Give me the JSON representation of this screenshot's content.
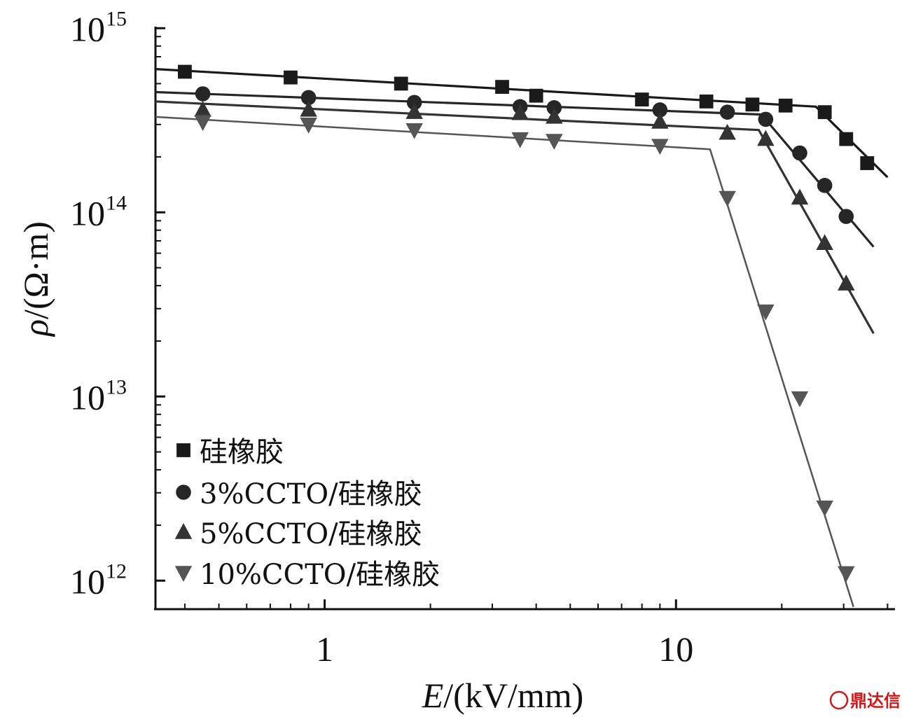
{
  "chart_data": {
    "type": "line",
    "x_scale": "log",
    "y_scale": "log",
    "xlim": [
      0.33,
      42
    ],
    "ylim": [
      700000000000.0,
      1020000000000000.0
    ],
    "x_ticks": [
      {
        "value": 1,
        "label": "1"
      },
      {
        "value": 10,
        "label": "10"
      }
    ],
    "y_ticks": [
      {
        "value": 1000000000000.0,
        "base": "10",
        "exp": "12"
      },
      {
        "value": 10000000000000.0,
        "base": "10",
        "exp": "13"
      },
      {
        "value": 100000000000000.0,
        "base": "10",
        "exp": "14"
      },
      {
        "value": 1000000000000000.0,
        "base": "10",
        "exp": "15"
      }
    ],
    "xlabel": {
      "var": "E",
      "rest": "/(kV/mm)"
    },
    "ylabel": {
      "var": "ρ",
      "rest": "/(Ω·m)"
    },
    "legend_position": "bottom-left",
    "series": [
      {
        "name": "硅橡胶",
        "marker": "square",
        "color": "#1a1a1a",
        "points": [
          [
            0.4,
            580000000000000.0
          ],
          [
            0.8,
            540000000000000.0
          ],
          [
            1.65,
            500000000000000.0
          ],
          [
            3.2,
            480000000000000.0
          ],
          [
            4.0,
            430000000000000.0
          ],
          [
            8.0,
            410000000000000.0
          ],
          [
            12.2,
            400000000000000.0
          ],
          [
            16.5,
            385000000000000.0
          ],
          [
            20.5,
            380000000000000.0
          ],
          [
            26.5,
            350000000000000.0
          ],
          [
            30.5,
            250000000000000.0
          ],
          [
            35.0,
            185000000000000.0
          ]
        ],
        "fit": [
          [
            0.33,
            600000000000000.0
          ],
          [
            25.0,
            375000000000000.0
          ],
          [
            40.0,
            155000000000000.0
          ]
        ]
      },
      {
        "name": "3%CCTO/硅橡胶",
        "marker": "circle",
        "color": "#262626",
        "points": [
          [
            0.45,
            440000000000000.0
          ],
          [
            0.9,
            420000000000000.0
          ],
          [
            1.8,
            395000000000000.0
          ],
          [
            3.6,
            375000000000000.0
          ],
          [
            4.5,
            370000000000000.0
          ],
          [
            9.0,
            360000000000000.0
          ],
          [
            14.0,
            350000000000000.0
          ],
          [
            18.0,
            320000000000000.0
          ],
          [
            22.5,
            210000000000000.0
          ],
          [
            26.5,
            140000000000000.0
          ],
          [
            30.5,
            95000000000000.0
          ]
        ],
        "fit": [
          [
            0.33,
            450000000000000.0
          ],
          [
            17.5,
            340000000000000.0
          ],
          [
            36.5,
            65000000000000.0
          ]
        ]
      },
      {
        "name": "5%CCTO/硅橡胶",
        "marker": "triangle-up",
        "color": "#333333",
        "points": [
          [
            0.45,
            360000000000000.0
          ],
          [
            0.9,
            360000000000000.0
          ],
          [
            1.8,
            350000000000000.0
          ],
          [
            3.6,
            345000000000000.0
          ],
          [
            4.5,
            330000000000000.0
          ],
          [
            9.0,
            310000000000000.0
          ],
          [
            14.0,
            270000000000000.0
          ],
          [
            18.0,
            250000000000000.0
          ],
          [
            22.5,
            120000000000000.0
          ],
          [
            26.5,
            68000000000000.0
          ],
          [
            30.5,
            41000000000000.0
          ]
        ],
        "fit": [
          [
            0.33,
            400000000000000.0
          ],
          [
            17.2,
            280000000000000.0
          ],
          [
            36.5,
            22000000000000.0
          ]
        ]
      },
      {
        "name": "10%CCTO/硅橡胶",
        "marker": "triangle-down",
        "color": "#555555",
        "points": [
          [
            0.45,
            310000000000000.0
          ],
          [
            0.9,
            300000000000000.0
          ],
          [
            1.8,
            280000000000000.0
          ],
          [
            3.6,
            250000000000000.0
          ],
          [
            4.5,
            245000000000000.0
          ],
          [
            9.0,
            230000000000000.0
          ],
          [
            14.0,
            120000000000000.0
          ],
          [
            18.0,
            29000000000000.0
          ],
          [
            22.5,
            9800000000000.0
          ],
          [
            26.5,
            2500000000000.0
          ],
          [
            30.5,
            1100000000000.0
          ]
        ],
        "fit": [
          [
            0.33,
            330000000000000.0
          ],
          [
            12.5,
            220000000000000.0
          ],
          [
            32.0,
            720000000000.0
          ]
        ]
      }
    ]
  },
  "watermark": {
    "text": "鼎达信",
    "color": "#d01818"
  }
}
